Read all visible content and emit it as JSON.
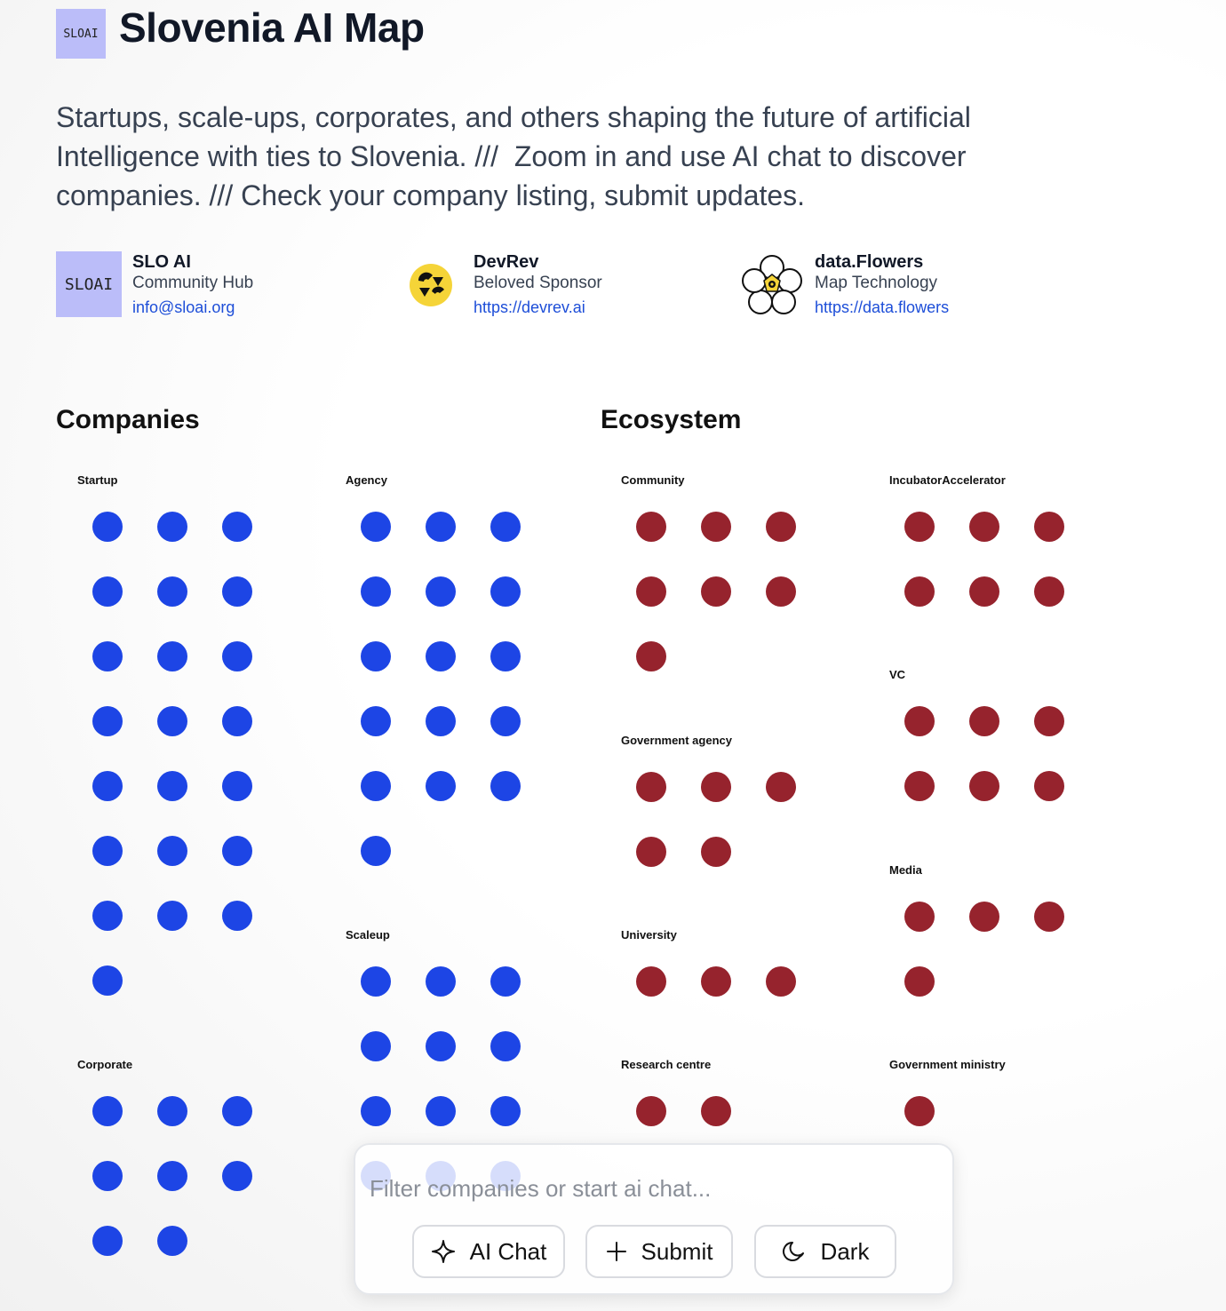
{
  "header": {
    "logo_text": "SLOAI",
    "title": "Slovenia AI Map",
    "description": "Startups, scale-ups, corporates, and others shaping the future of artificial Intelligence with ties to Slovenia. ///  Zoom in and use AI chat to discover companies. /// Check your company listing, submit updates."
  },
  "partners": [
    {
      "logo_text": "SLOAI",
      "name": "SLO AI",
      "role": "Community Hub",
      "link": "info@sloai.org",
      "icon": "sloai-logo"
    },
    {
      "name": "DevRev",
      "role": "Beloved Sponsor",
      "link": "https://devrev.ai",
      "icon": "devrev-logo"
    },
    {
      "name": "data.Flowers",
      "role": "Map Technology",
      "link": "https://data.flowers",
      "icon": "data-flowers-logo"
    }
  ],
  "sections": {
    "companies": "Companies",
    "ecosystem": "Ecosystem"
  },
  "categories": {
    "startup": {
      "label": "Startup",
      "count": 22
    },
    "agency": {
      "label": "Agency",
      "count": 16
    },
    "scaleup": {
      "label": "Scaleup",
      "count": 12
    },
    "corporate": {
      "label": "Corporate",
      "count": 8
    },
    "community": {
      "label": "Community",
      "count": 7
    },
    "incubator": {
      "label": "IncubatorAccelerator",
      "count": 6
    },
    "vc": {
      "label": "VC",
      "count": 6
    },
    "government_agency": {
      "label": "Government agency",
      "count": 5
    },
    "media": {
      "label": "Media",
      "count": 4
    },
    "university": {
      "label": "University",
      "count": 3
    },
    "research_centre": {
      "label": "Research centre",
      "count": 2
    },
    "government_ministry": {
      "label": "Government ministry",
      "count": 1
    }
  },
  "colors": {
    "companies": "#1d45e5",
    "ecosystem": "#96232d"
  },
  "filter": {
    "placeholder": "Filter companies or start ai chat...",
    "ai_chat_label": "AI Chat",
    "ai_chat_icon": "sparkle-icon",
    "submit_label": "Submit",
    "submit_icon": "plus-icon",
    "dark_label": "Dark",
    "dark_icon": "moon-icon"
  }
}
